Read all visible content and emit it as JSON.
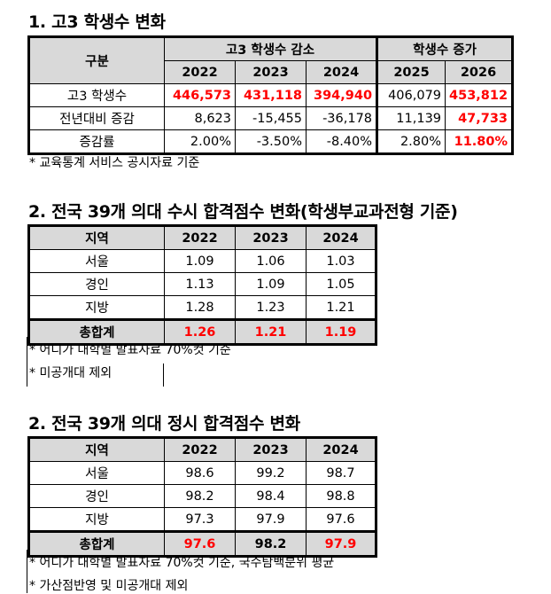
{
  "s1": {
    "title": "1. 고3 학생수 변화",
    "h_gubun": "구분",
    "h_decrease": "고3 학생수 감소",
    "h_increase": "학생수 증가",
    "years": [
      "2022",
      "2023",
      "2024",
      "2025",
      "2026"
    ],
    "rows": [
      {
        "label": "고3 학생수",
        "values": [
          "446,573",
          "431,118",
          "394,940",
          "406,079",
          "453,812"
        ]
      },
      {
        "label": "전년대비 증감",
        "values": [
          "8,623",
          "-15,455",
          "-36,178",
          "11,139",
          "47,733"
        ]
      },
      {
        "label": "증감률",
        "values": [
          "2.00%",
          "-3.50%",
          "-8.40%",
          "2.80%",
          "11.80%"
        ]
      }
    ],
    "note": "* 교육통계 서비스 공시자료 기준"
  },
  "s2": {
    "title": "2. 전국 39개 의대 수시 합격점수 변화(학생부교과전형 기준)",
    "h_region": "지역",
    "years": [
      "2022",
      "2023",
      "2024"
    ],
    "rows": [
      {
        "label": "서울",
        "values": [
          "1.09",
          "1.06",
          "1.03"
        ]
      },
      {
        "label": "경인",
        "values": [
          "1.13",
          "1.09",
          "1.05"
        ]
      },
      {
        "label": "지방",
        "values": [
          "1.28",
          "1.23",
          "1.21"
        ]
      }
    ],
    "total": {
      "label": "총합계",
      "values": [
        "1.26",
        "1.21",
        "1.19"
      ]
    },
    "notes": [
      "* 어디가 대학별 발표자료 70%컷 기준",
      "* 미공개대 제외"
    ]
  },
  "s3": {
    "title": "2. 전국 39개 의대 정시 합격점수 변화",
    "h_region": "지역",
    "years": [
      "2022",
      "2023",
      "2024"
    ],
    "rows": [
      {
        "label": "서울",
        "values": [
          "98.6",
          "99.2",
          "98.7"
        ]
      },
      {
        "label": "경인",
        "values": [
          "98.2",
          "98.4",
          "98.8"
        ]
      },
      {
        "label": "지방",
        "values": [
          "97.3",
          "97.9",
          "97.6"
        ]
      }
    ],
    "total": {
      "label": "총합계",
      "values": [
        "97.6",
        "98.2",
        "97.9"
      ]
    },
    "notes": [
      "* 어디가 대학별 발표자료 70%컷 기준, 국수탐백분위 평균",
      "* 가산점반영 및 미공개대 제외"
    ]
  },
  "colors": {
    "header_bg": "#d9d9d9",
    "highlight": "#ff0000"
  }
}
